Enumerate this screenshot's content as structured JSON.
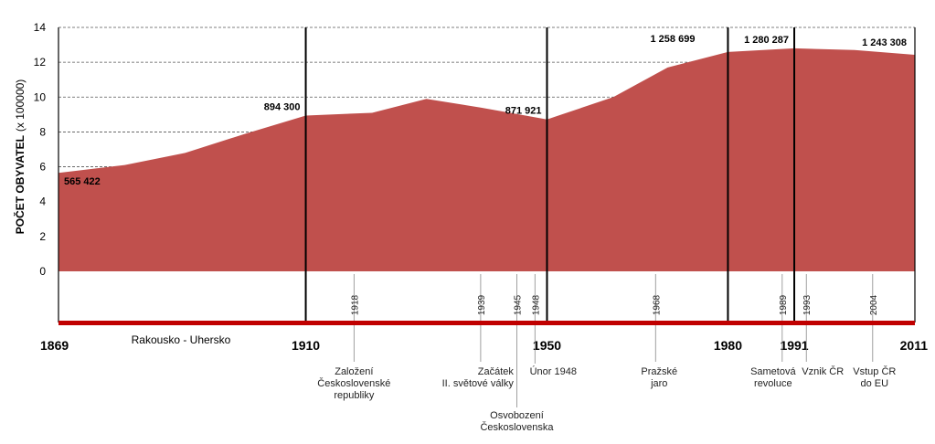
{
  "chart_data": {
    "type": "area",
    "ylabel": "POČET OBYVATEL",
    "ylabel_unit": "(x 100000)",
    "ylim": [
      0,
      14
    ],
    "yticks": [
      "0",
      "2",
      "4",
      "6",
      "8",
      "10",
      "12",
      "14"
    ],
    "grid": true,
    "color": "#c0504d",
    "x": [
      1869,
      1880,
      1890,
      1900,
      1910,
      1921,
      1930,
      1939,
      1950,
      1961,
      1970,
      1980,
      1991,
      2001,
      2011
    ],
    "values": [
      5.65,
      6.1,
      6.8,
      7.9,
      8.94,
      9.1,
      9.9,
      9.4,
      8.72,
      10.0,
      11.7,
      12.59,
      12.8,
      12.7,
      12.43
    ],
    "data_labels": [
      {
        "year": 1869,
        "text": "565 422"
      },
      {
        "year": 1910,
        "text": "894 300"
      },
      {
        "year": 1950,
        "text": "871 921"
      },
      {
        "year": 1980,
        "text": "1 258 699"
      },
      {
        "year": 1991,
        "text": "1 280 287"
      },
      {
        "year": 2011,
        "text": "1 243 308"
      }
    ],
    "era_years": [
      {
        "year": 1869,
        "label": "1869"
      },
      {
        "year": 1910,
        "label": "1910"
      },
      {
        "year": 1950,
        "label": "1950"
      },
      {
        "year": 1980,
        "label": "1980"
      },
      {
        "year": 1991,
        "label": "1991"
      },
      {
        "year": 2011,
        "label": "2011"
      }
    ],
    "period_label": "Rakousko - Uhersko",
    "events": [
      {
        "year": 1918,
        "label": "1918",
        "desc": [
          "Založení",
          "Československé",
          "republiky"
        ]
      },
      {
        "year": 1939,
        "label": "1939",
        "desc": [
          "Začátek",
          "II. světové války"
        ]
      },
      {
        "year": 1945,
        "label": "1945",
        "desc": [
          "Osvobození",
          "Československa"
        ]
      },
      {
        "year": 1948,
        "label": "1948",
        "desc": [
          "Únor 1948"
        ]
      },
      {
        "year": 1968,
        "label": "1968",
        "desc": [
          "Pražské",
          "jaro"
        ]
      },
      {
        "year": 1989,
        "label": "1989",
        "desc": [
          "Sametová",
          "revoluce"
        ]
      },
      {
        "year": 1993,
        "label": "1993",
        "desc": [
          "Vznik ČR"
        ]
      },
      {
        "year": 2004,
        "label": "2004",
        "desc": [
          "Vstup ČR",
          "do EU"
        ]
      }
    ]
  }
}
